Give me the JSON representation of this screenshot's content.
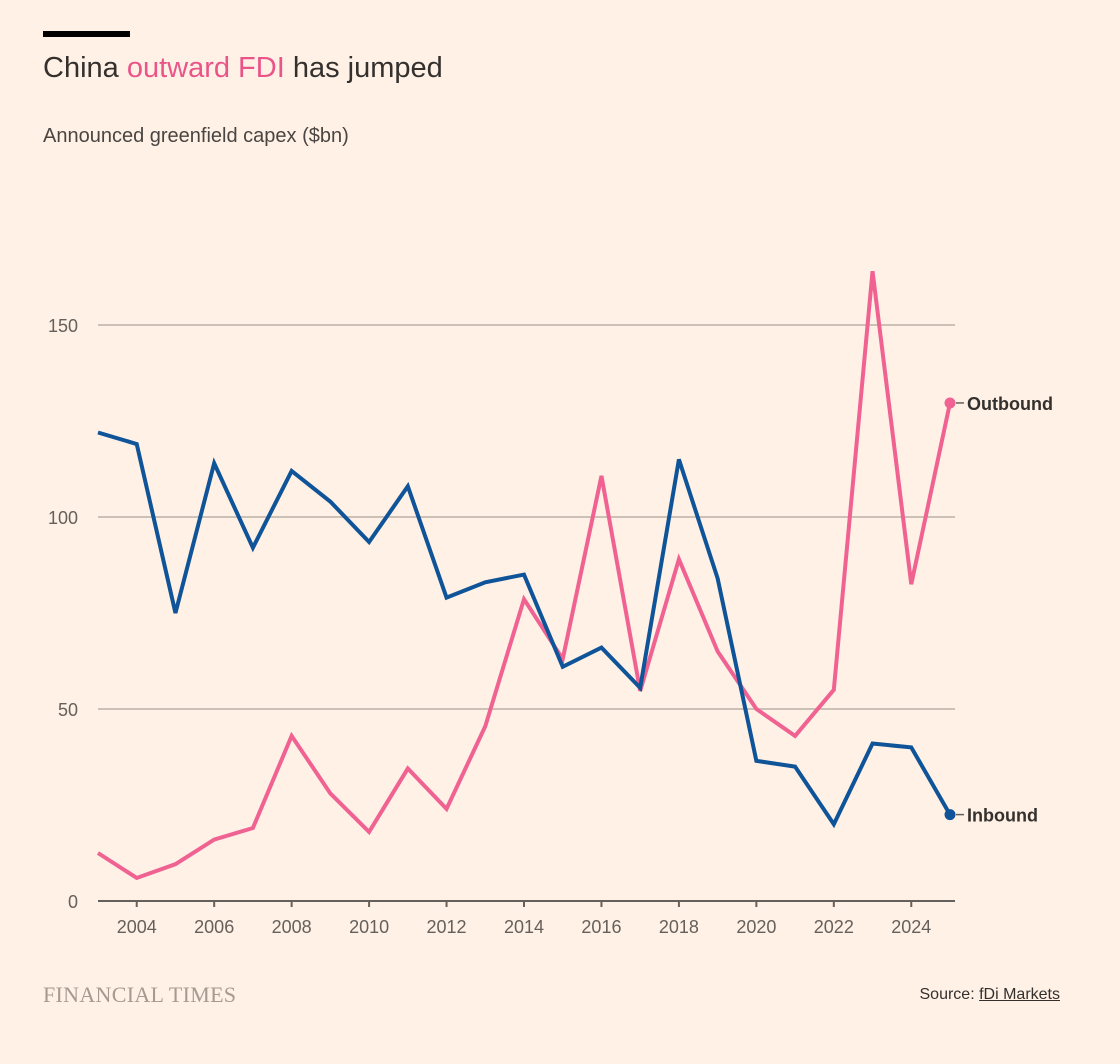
{
  "header": {
    "title_prefix": "China ",
    "title_highlight": "outward FDI",
    "title_suffix": " has jumped",
    "subtitle": "Announced greenfield capex ($bn)"
  },
  "footer": {
    "brand": "FINANCIAL TIMES",
    "source_label": "Source: ",
    "source_link": "fDi Markets"
  },
  "colors": {
    "background": "#fff1e5",
    "inbound": "#0f5499",
    "outbound": "#f06292",
    "grid": "#ccc1b7"
  },
  "chart_data": {
    "type": "line",
    "title": "China outward FDI has jumped",
    "ylabel": "Announced greenfield capex ($bn)",
    "ylim": [
      0,
      175
    ],
    "xlim": [
      2003,
      2025
    ],
    "yticks": [
      0,
      50,
      100,
      150
    ],
    "xticks": [
      2004,
      2006,
      2008,
      2010,
      2012,
      2014,
      2016,
      2018,
      2020,
      2022,
      2024
    ],
    "grid": true,
    "x": [
      2003,
      2004,
      2005,
      2006,
      2007,
      2008,
      2009,
      2010,
      2011,
      2012,
      2013,
      2014,
      2015,
      2016,
      2017,
      2018,
      2019,
      2020,
      2021,
      2022,
      2023,
      2024,
      2025
    ],
    "series": [
      {
        "name": "Outbound",
        "color": "#f06292",
        "values": [
          12.5,
          6,
          9.6,
          16,
          19,
          43,
          28,
          18,
          34.5,
          24,
          45.5,
          78.6,
          63,
          110.7,
          54.7,
          89,
          65,
          50,
          43,
          55,
          164,
          82.5,
          129.7
        ]
      },
      {
        "name": "Inbound",
        "color": "#0f5499",
        "values": [
          122,
          119,
          75,
          114,
          92,
          112,
          104,
          93.5,
          108,
          79,
          83,
          85,
          61,
          66,
          55.5,
          115,
          84,
          36.5,
          35,
          20,
          41,
          40,
          22.5
        ]
      }
    ]
  }
}
